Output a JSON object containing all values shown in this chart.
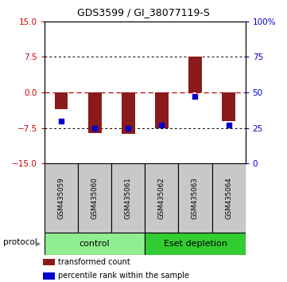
{
  "title": "GDS3599 / GI_38077119-S",
  "samples": [
    "GSM435059",
    "GSM435060",
    "GSM435061",
    "GSM435062",
    "GSM435063",
    "GSM435064"
  ],
  "transformed_counts": [
    -3.5,
    -8.5,
    -8.8,
    -7.5,
    7.5,
    -6.0
  ],
  "percentile_ranks_raw": [
    30,
    25,
    25,
    27,
    47,
    27
  ],
  "ylim_left": [
    -15,
    15
  ],
  "ylim_right": [
    0,
    100
  ],
  "yticks_left": [
    -15,
    -7.5,
    0,
    7.5,
    15
  ],
  "yticks_right": [
    0,
    25,
    50,
    75,
    100
  ],
  "bar_color": "#8B1A1A",
  "point_color": "#0000CD",
  "protocol_groups": [
    {
      "label": "control",
      "n_samples": 3,
      "color": "#90EE90"
    },
    {
      "label": "Eset depletion",
      "n_samples": 3,
      "color": "#32CD32"
    }
  ],
  "protocol_label": "protocol",
  "legend_bar_label": "transformed count",
  "legend_point_label": "percentile rank within the sample",
  "bg_color": "#FFFFFF",
  "plot_bg_color": "#FFFFFF",
  "tick_color_left": "#CC0000",
  "tick_color_right": "#0000CD",
  "sample_bg_color": "#C8C8C8",
  "zero_line_color": "#CC0000",
  "grid_color": "#000000"
}
